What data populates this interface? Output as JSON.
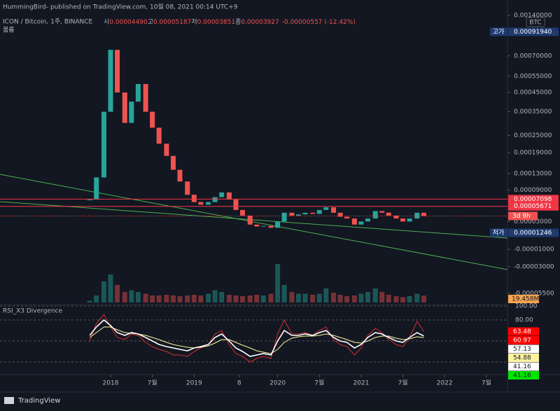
{
  "header": {
    "publisher": "HummingBird- published on TradingView.com, 10월 08, 2021 00:14 UTC+9",
    "symbol": "ICON / Bitcoin, 1주, BINANCE",
    "ohlc": [
      "시",
      "0.00004490",
      "고",
      "0.00005187",
      "저",
      "0.00003851",
      "종",
      "0.00003927"
    ],
    "change": "-0.00000557 (-12.42%)",
    "volume_label": "볼륨",
    "currency": "BTC",
    "countdown": "3d 9h",
    "brand": "TradingView"
  },
  "chart_data": [
    {
      "type": "candlestick",
      "x": [
        2017.75,
        2017.83,
        2017.92,
        2018.0,
        2018.08,
        2018.17,
        2018.25,
        2018.33,
        2018.42,
        2018.5,
        2018.58,
        2018.67,
        2018.75,
        2018.83,
        2018.92,
        2019.0,
        2019.08,
        2019.17,
        2019.25,
        2019.33,
        2019.42,
        2019.5,
        2019.58,
        2019.67,
        2019.75,
        2019.83,
        2019.92,
        2020.0,
        2020.08,
        2020.17,
        2020.25,
        2020.33,
        2020.42,
        2020.5,
        2020.58,
        2020.67,
        2020.75,
        2020.83,
        2020.92,
        2021.0,
        2021.08,
        2021.17,
        2021.25,
        2021.33,
        2021.42,
        2021.5,
        2021.58,
        2021.67,
        2021.75
      ],
      "values": [
        7e-05,
        0.00012,
        0.00035,
        0.00075,
        0.00045,
        0.0003,
        0.0004,
        0.0005,
        0.00035,
        0.00028,
        0.00022,
        0.00018,
        0.00014,
        0.00011,
        8e-05,
        6.5e-05,
        6e-05,
        6.5e-05,
        7.5e-05,
        8.5e-05,
        7e-05,
        5e-05,
        4e-05,
        2.5e-05,
        2.2e-05,
        2.3e-05,
        2e-05,
        3e-05,
        4.5e-05,
        4e-05,
        4.2e-05,
        4.5e-05,
        4.3e-05,
        5e-05,
        5.5e-05,
        4.5e-05,
        3.8e-05,
        3.5e-05,
        2.5e-05,
        3e-05,
        3.5e-05,
        4.8e-05,
        4.5e-05,
        4e-05,
        3.5e-05,
        3e-05,
        3.5e-05,
        4.5e-05,
        3.927e-05
      ],
      "colors": {
        "up": "#26a69a",
        "down": "#ef5350"
      },
      "ylim": [
        -5.5e-05,
        0.0014
      ],
      "yticks": [
        {
          "value": 0.0014,
          "label": "0.00140000"
        },
        {
          "value": 0.0007,
          "label": "0.00070000"
        },
        {
          "value": 0.00055,
          "label": "0.00055000"
        },
        {
          "value": 0.00045,
          "label": "0.00045000"
        },
        {
          "value": 0.00035,
          "label": "0.00035000"
        },
        {
          "value": 0.00025,
          "label": "0.00025000"
        },
        {
          "value": 0.00019,
          "label": "0.00019000"
        },
        {
          "value": 0.00013,
          "label": "0.00013000"
        },
        {
          "value": 9e-05,
          "label": "0.00009000"
        },
        {
          "value": 3e-05,
          "label": "0.00003000"
        },
        {
          "value": -1e-05,
          "label": "-0.00001000"
        },
        {
          "value": -3e-05,
          "label": "-0.00003000"
        },
        {
          "value": -5.5e-05,
          "label": "-0.00005500"
        }
      ],
      "xticks": [
        2018,
        {
          "value": 2018.5,
          "label": "7월"
        },
        2019,
        {
          "value": 2019.54,
          "label": "8"
        },
        2020,
        {
          "value": 2020.5,
          "label": "7월"
        },
        2021,
        {
          "value": 2021.5,
          "label": "7월"
        },
        2022,
        {
          "value": 2022.5,
          "label": "7월"
        }
      ],
      "high": {
        "label": "고가",
        "value": 0.0009194,
        "value_label": "0.00091940"
      },
      "low": {
        "label": "저가",
        "value": 1.246e-05,
        "value_label": "0.00001246"
      },
      "levels": [
        {
          "value": 7.098e-05,
          "label": "0.00007098"
        },
        {
          "value": 5.671e-05,
          "label": "0.00005671"
        }
      ],
      "level_color": "#f23645",
      "volume": [
        5000000,
        20000000,
        60000000,
        80000000,
        50000000,
        30000000,
        35000000,
        30000000,
        25000000,
        20000000,
        20000000,
        22000000,
        20000000,
        18000000,
        20000000,
        22000000,
        20000000,
        25000000,
        35000000,
        30000000,
        22000000,
        20000000,
        18000000,
        20000000,
        22000000,
        20000000,
        25000000,
        110000000,
        50000000,
        30000000,
        25000000,
        25000000,
        22000000,
        25000000,
        40000000,
        28000000,
        22000000,
        18000000,
        20000000,
        25000000,
        30000000,
        40000000,
        30000000,
        22000000,
        18000000,
        15000000,
        18000000,
        25000000,
        19458000
      ],
      "volume_tag": {
        "value": 19458000,
        "label": "19.458M"
      }
    },
    {
      "type": "line",
      "title": "RSI_X3 Divergence",
      "x": [
        2017.75,
        2017.83,
        2017.92,
        2018.0,
        2018.08,
        2018.17,
        2018.25,
        2018.33,
        2018.42,
        2018.5,
        2018.58,
        2018.67,
        2018.75,
        2018.83,
        2018.92,
        2019.0,
        2019.08,
        2019.17,
        2019.25,
        2019.33,
        2019.42,
        2019.5,
        2019.58,
        2019.67,
        2019.75,
        2019.83,
        2019.92,
        2020.0,
        2020.08,
        2020.17,
        2020.25,
        2020.33,
        2020.42,
        2020.5,
        2020.58,
        2020.67,
        2020.75,
        2020.83,
        2020.92,
        2021.0,
        2021.08,
        2021.17,
        2021.25,
        2021.33,
        2021.42,
        2021.5,
        2021.58,
        2021.67,
        2021.75
      ],
      "series": [
        {
          "color": "#d32f2f",
          "values": [
            50,
            75,
            88,
            70,
            55,
            52,
            60,
            58,
            48,
            42,
            38,
            35,
            30,
            30,
            28,
            35,
            40,
            45,
            60,
            65,
            45,
            32,
            28,
            20,
            25,
            28,
            25,
            60,
            80,
            60,
            60,
            62,
            58,
            65,
            70,
            52,
            45,
            42,
            30,
            40,
            58,
            68,
            62,
            52,
            45,
            42,
            55,
            78,
            63.48
          ]
        },
        {
          "color": "#fff59d",
          "values": [
            55,
            62,
            70,
            70,
            66,
            62,
            61,
            60,
            58,
            55,
            52,
            48,
            45,
            43,
            41,
            40,
            41,
            43,
            47,
            52,
            52,
            48,
            44,
            40,
            36,
            34,
            32,
            38,
            48,
            54,
            56,
            57,
            57,
            58,
            60,
            58,
            55,
            52,
            48,
            47,
            50,
            55,
            57,
            57,
            54,
            52,
            53,
            56,
            54.88
          ]
        },
        {
          "color": "#ffffff",
          "values": [
            58,
            70,
            80,
            72,
            62,
            58,
            62,
            60,
            55,
            50,
            45,
            42,
            40,
            38,
            36,
            40,
            42,
            45,
            55,
            60,
            50,
            40,
            35,
            28,
            30,
            32,
            30,
            50,
            65,
            58,
            58,
            60,
            58,
            62,
            65,
            55,
            50,
            48,
            40,
            45,
            55,
            62,
            60,
            55,
            50,
            48,
            55,
            62,
            57.13
          ]
        }
      ],
      "ylim": [
        0,
        100
      ],
      "yticks": [
        {
          "value": 100,
          "label": "100.00"
        },
        {
          "value": 80,
          "label": "80.00"
        }
      ],
      "bands": [
        50,
        20
      ],
      "tags": [
        {
          "value": 63.48,
          "color": "#ff0000"
        },
        {
          "value": 60.97,
          "color": "#ff0000"
        },
        {
          "value": 57.13,
          "color": "#ffffff"
        },
        {
          "value": 54.88,
          "color": "#fff59d"
        },
        {
          "value": 41.16,
          "color": "#ffffff"
        },
        {
          "value": 41.16,
          "color": "#00e600"
        }
      ]
    }
  ]
}
